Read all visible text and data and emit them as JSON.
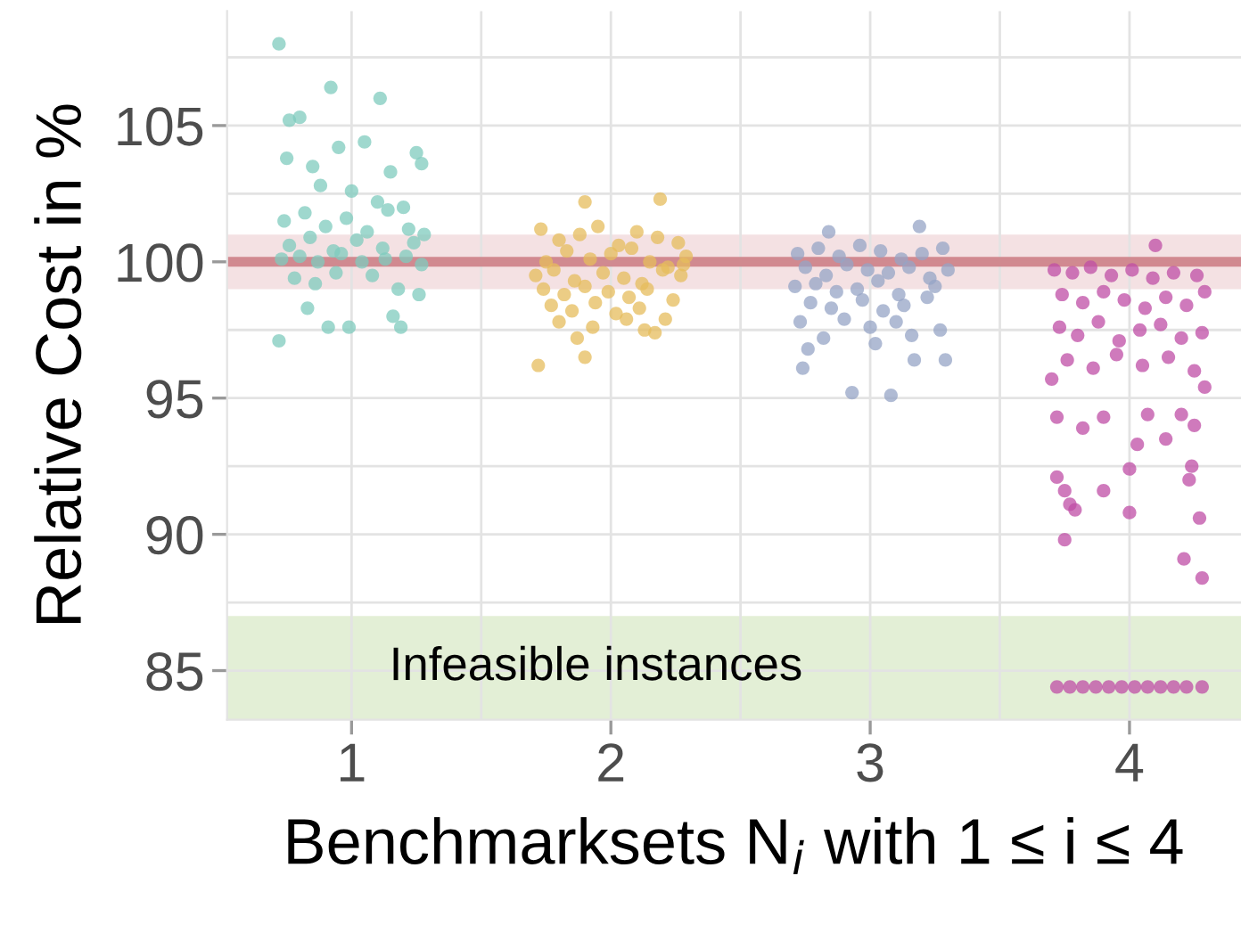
{
  "chart_data": {
    "type": "scatter",
    "xlabel": "Benchmarksets N$_{i}$ with 1 ≤ i ≤ 4",
    "ylabel": "Relative Cost in %",
    "xlim": [
      0.52,
      4.43
    ],
    "xticks": [
      1,
      2,
      3,
      4,
      {
        "value": 1.5,
        "label": null
      },
      {
        "value": 2.5,
        "label": null
      },
      {
        "value": 3.5,
        "label": null
      }
    ],
    "ylim": [
      83.2,
      109.2
    ],
    "yticks": [
      85,
      90,
      95,
      100,
      105,
      {
        "value": 87.5,
        "label": null
      },
      {
        "value": 92.5,
        "label": null
      },
      {
        "value": 97.5,
        "label": null
      },
      {
        "value": 102.5,
        "label": null
      },
      {
        "value": 107.5,
        "label": null
      }
    ],
    "grid": true,
    "marker": "circle",
    "legend": false,
    "ref_lines": [
      {
        "axis": "y",
        "value": 100,
        "label": null,
        "color": "#cd7f86"
      }
    ],
    "bands": [
      {
        "axis": "y",
        "from": 99,
        "to": 101,
        "label": null,
        "color": "#f4e1e3"
      },
      {
        "axis": "y",
        "from": 83.2,
        "to": 87,
        "label": "Infeasible instances",
        "color": "#e3efd6"
      }
    ],
    "series": [
      {
        "color": "#7fcbbd",
        "x": [
          0.72,
          0.92,
          1.11,
          0.76,
          0.8,
          0.72,
          0.75,
          0.85,
          0.95,
          1.05,
          1.15,
          1.25,
          1.27,
          0.88,
          1.0,
          1.1,
          1.2,
          0.74,
          0.82,
          0.9,
          0.98,
          1.06,
          1.14,
          1.22,
          1.28,
          0.76,
          0.84,
          0.93,
          1.02,
          1.12,
          1.24,
          0.73,
          0.8,
          0.87,
          0.96,
          1.04,
          1.13,
          1.21,
          1.27,
          0.78,
          0.86,
          0.94,
          1.08,
          1.18,
          1.26,
          0.83,
          0.99,
          1.16,
          0.91,
          1.19
        ],
        "values": [
          108.0,
          106.4,
          106.0,
          105.2,
          105.3,
          97.1,
          103.8,
          103.5,
          104.2,
          104.4,
          103.3,
          104.0,
          103.6,
          102.8,
          102.6,
          102.2,
          102.0,
          101.5,
          101.8,
          101.3,
          101.6,
          101.1,
          101.9,
          101.2,
          101.0,
          100.6,
          100.9,
          100.4,
          100.8,
          100.5,
          100.7,
          100.1,
          100.2,
          100.0,
          100.3,
          100.0,
          100.1,
          100.2,
          99.9,
          99.4,
          99.2,
          99.6,
          99.5,
          99.0,
          98.8,
          98.3,
          97.6,
          98.0,
          97.6,
          97.6
        ]
      },
      {
        "color": "#e6bc5c",
        "x": [
          1.9,
          2.19,
          1.72,
          1.9,
          1.73,
          1.8,
          1.88,
          1.95,
          2.03,
          2.1,
          2.18,
          2.26,
          2.29,
          1.75,
          1.83,
          1.92,
          2.0,
          2.08,
          2.15,
          2.22,
          2.28,
          1.71,
          1.78,
          1.86,
          1.97,
          2.05,
          2.12,
          2.2,
          2.27,
          1.74,
          1.82,
          1.9,
          1.99,
          2.07,
          2.14,
          2.24,
          1.77,
          1.85,
          1.94,
          2.02,
          2.11,
          2.21,
          1.8,
          1.93,
          2.06,
          2.17,
          1.87,
          2.13
        ],
        "values": [
          102.2,
          102.3,
          96.2,
          96.5,
          101.2,
          100.8,
          101.0,
          101.3,
          100.6,
          101.1,
          100.9,
          100.7,
          100.2,
          100.0,
          100.4,
          100.1,
          100.3,
          100.5,
          100.0,
          99.8,
          99.9,
          99.5,
          99.7,
          99.3,
          99.6,
          99.4,
          99.2,
          99.7,
          99.5,
          99.0,
          98.8,
          99.1,
          98.9,
          98.7,
          99.0,
          98.6,
          98.4,
          98.2,
          98.5,
          98.1,
          98.3,
          97.9,
          97.8,
          97.6,
          97.9,
          97.4,
          97.2,
          97.5
        ]
      },
      {
        "color": "#95a4c6",
        "x": [
          3.19,
          2.84,
          2.93,
          3.08,
          2.74,
          3.29,
          3.17,
          2.72,
          2.8,
          2.88,
          2.96,
          3.04,
          3.12,
          3.2,
          3.28,
          2.75,
          2.83,
          2.91,
          2.99,
          3.07,
          3.15,
          3.23,
          3.3,
          2.71,
          2.79,
          2.87,
          2.95,
          3.03,
          3.11,
          3.25,
          2.77,
          2.85,
          2.97,
          3.05,
          3.13,
          3.22,
          2.73,
          2.9,
          3.0,
          3.1,
          3.27,
          2.82,
          3.16,
          2.76,
          3.02
        ],
        "values": [
          101.3,
          101.1,
          95.2,
          95.1,
          96.1,
          96.4,
          96.4,
          100.3,
          100.5,
          100.2,
          100.6,
          100.4,
          100.1,
          100.3,
          100.5,
          99.8,
          99.5,
          99.9,
          99.7,
          99.6,
          99.8,
          99.4,
          99.7,
          99.1,
          99.2,
          98.9,
          99.0,
          99.3,
          98.8,
          99.1,
          98.5,
          98.3,
          98.6,
          98.2,
          98.4,
          98.7,
          97.8,
          97.9,
          97.6,
          97.8,
          97.5,
          97.2,
          97.3,
          96.8,
          97.0
        ]
      },
      {
        "color": "#bf4ea6",
        "x": [
          4.1,
          3.72,
          3.75,
          3.77,
          3.79,
          3.75,
          3.9,
          4.0,
          4.0,
          4.24,
          4.23,
          4.27,
          4.21,
          4.28,
          3.82,
          4.03,
          4.14,
          4.25,
          3.72,
          3.9,
          4.07,
          4.2,
          4.29,
          3.7,
          3.71,
          3.78,
          3.85,
          3.93,
          4.01,
          4.09,
          4.17,
          4.26,
          3.74,
          3.82,
          3.9,
          3.98,
          4.06,
          4.14,
          4.22,
          4.29,
          3.73,
          3.8,
          3.88,
          3.96,
          4.04,
          4.12,
          4.2,
          4.28,
          3.76,
          3.86,
          3.95,
          4.05,
          4.15,
          4.25,
          3.72,
          3.77,
          3.82,
          3.87,
          3.92,
          3.97,
          4.02,
          4.07,
          4.12,
          4.17,
          4.22,
          4.28
        ],
        "values": [
          100.6,
          92.1,
          91.6,
          91.1,
          90.9,
          89.8,
          91.6,
          92.4,
          90.8,
          92.5,
          92.0,
          90.6,
          89.1,
          88.4,
          93.9,
          93.3,
          93.5,
          94.0,
          94.3,
          94.3,
          94.4,
          94.4,
          95.4,
          95.7,
          99.7,
          99.6,
          99.8,
          99.5,
          99.7,
          99.4,
          99.6,
          99.5,
          98.8,
          98.5,
          98.9,
          98.6,
          98.3,
          98.7,
          98.4,
          98.9,
          97.6,
          97.3,
          97.8,
          97.1,
          97.5,
          97.7,
          97.2,
          97.4,
          96.4,
          96.1,
          96.6,
          96.2,
          96.5,
          96.0,
          84.4,
          84.4,
          84.4,
          84.4,
          84.4,
          84.4,
          84.4,
          84.4,
          84.4,
          84.4,
          84.4,
          84.4
        ]
      }
    ]
  }
}
